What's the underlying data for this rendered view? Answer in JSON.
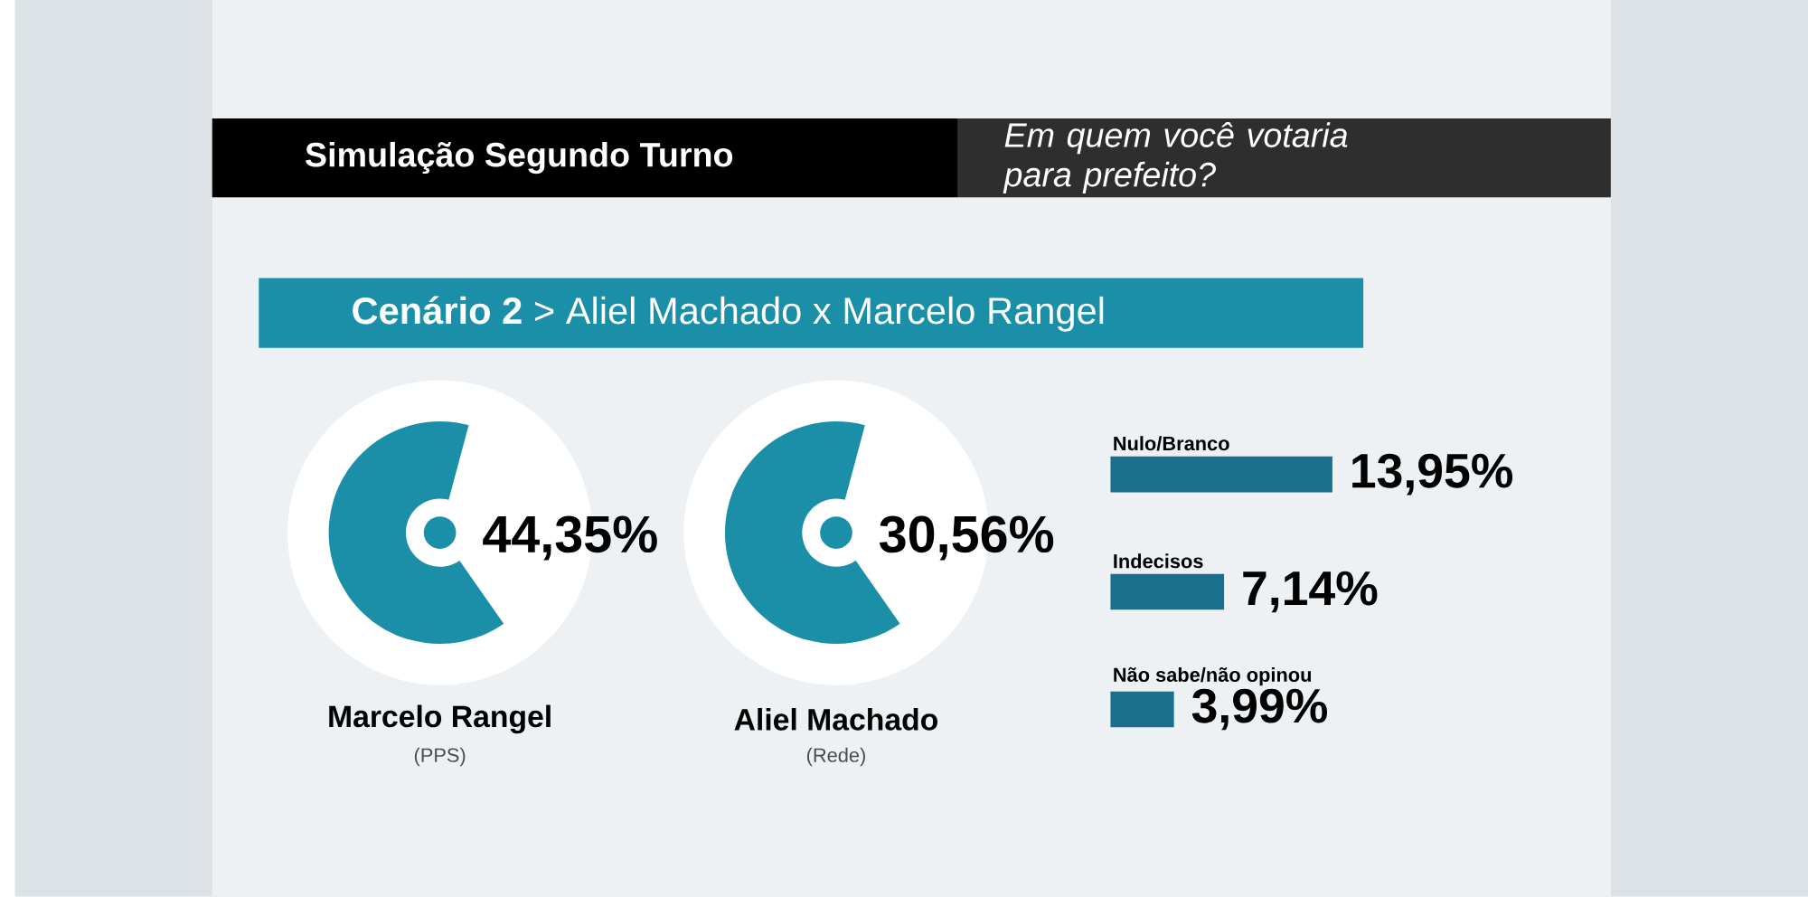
{
  "chart_data": [
    {
      "type": "other",
      "title": "Simulação Segundo Turno",
      "categories": [
        "Marcelo Rangel",
        "Aliel Machado"
      ],
      "values": [
        44.35,
        30.56
      ],
      "value_labels": [
        "44,35%",
        "30,56%"
      ],
      "annotations": [
        "**Cenário 2** > Aliel Machado x Marcelo Rangel",
        "(PPS)",
        "(Rede)"
      ]
    },
    {
      "type": "bar",
      "orientation": "horizontal",
      "subtitle": "Em quem você votaria para prefeito?",
      "categories": [
        "Nulo/Branco",
        "Indecisos",
        "Não sabe/não opinou"
      ],
      "values": [
        13.95,
        7.14,
        3.99
      ],
      "value_labels": [
        "13,95%",
        "7,14%",
        "3,99%"
      ],
      "color": "#1a6f8c"
    }
  ]
}
